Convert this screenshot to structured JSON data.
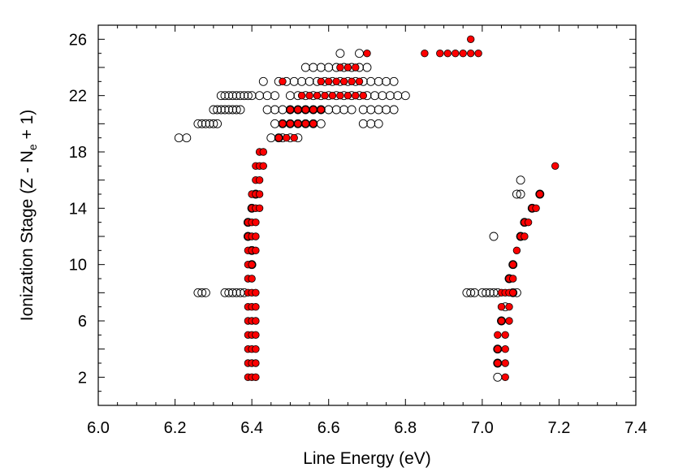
{
  "chart_data": {
    "type": "scatter",
    "xlabel": "Line Energy (eV)",
    "ylabel": {
      "prefix": "Ionization Stage (Z - N",
      "subscript": "e",
      "suffix": " + 1)"
    },
    "xlim": [
      6.0,
      7.4
    ],
    "ylim": [
      0,
      27
    ],
    "x_ticks": [
      "6.0",
      "6.2",
      "6.4",
      "6.6",
      "6.8",
      "7.0",
      "7.2",
      "7.4"
    ],
    "y_ticks": [
      "2",
      "6",
      "10",
      "14",
      "18",
      "22",
      "26"
    ],
    "grid": false,
    "legend": "none",
    "colors": {
      "filled": "#ff0000",
      "outline": "#000000"
    },
    "series": [
      {
        "marker": "open-circle",
        "points": [
          [
            6.21,
            19
          ],
          [
            6.23,
            19
          ],
          [
            6.45,
            19
          ],
          [
            6.47,
            19
          ],
          [
            6.48,
            19
          ],
          [
            6.5,
            19
          ],
          [
            6.52,
            19
          ],
          [
            6.26,
            20
          ],
          [
            6.27,
            20
          ],
          [
            6.28,
            20
          ],
          [
            6.29,
            20
          ],
          [
            6.3,
            20
          ],
          [
            6.31,
            20
          ],
          [
            6.46,
            20
          ],
          [
            6.48,
            20
          ],
          [
            6.5,
            20
          ],
          [
            6.52,
            20
          ],
          [
            6.54,
            20
          ],
          [
            6.56,
            20
          ],
          [
            6.58,
            20
          ],
          [
            6.69,
            20
          ],
          [
            6.71,
            20
          ],
          [
            6.73,
            20
          ],
          [
            6.3,
            21
          ],
          [
            6.31,
            21
          ],
          [
            6.32,
            21
          ],
          [
            6.33,
            21
          ],
          [
            6.34,
            21
          ],
          [
            6.35,
            21
          ],
          [
            6.36,
            21
          ],
          [
            6.37,
            21
          ],
          [
            6.44,
            21
          ],
          [
            6.46,
            21
          ],
          [
            6.48,
            21
          ],
          [
            6.5,
            21
          ],
          [
            6.52,
            21
          ],
          [
            6.54,
            21
          ],
          [
            6.56,
            21
          ],
          [
            6.58,
            21
          ],
          [
            6.6,
            21
          ],
          [
            6.62,
            21
          ],
          [
            6.64,
            21
          ],
          [
            6.66,
            21
          ],
          [
            6.69,
            21
          ],
          [
            6.71,
            21
          ],
          [
            6.73,
            21
          ],
          [
            6.75,
            21
          ],
          [
            6.77,
            21
          ],
          [
            6.32,
            22
          ],
          [
            6.33,
            22
          ],
          [
            6.34,
            22
          ],
          [
            6.35,
            22
          ],
          [
            6.36,
            22
          ],
          [
            6.37,
            22
          ],
          [
            6.38,
            22
          ],
          [
            6.39,
            22
          ],
          [
            6.4,
            22
          ],
          [
            6.42,
            22
          ],
          [
            6.44,
            22
          ],
          [
            6.46,
            22
          ],
          [
            6.5,
            22
          ],
          [
            6.52,
            22
          ],
          [
            6.54,
            22
          ],
          [
            6.56,
            22
          ],
          [
            6.58,
            22
          ],
          [
            6.6,
            22
          ],
          [
            6.62,
            22
          ],
          [
            6.64,
            22
          ],
          [
            6.66,
            22
          ],
          [
            6.68,
            22
          ],
          [
            6.7,
            22
          ],
          [
            6.72,
            22
          ],
          [
            6.74,
            22
          ],
          [
            6.76,
            22
          ],
          [
            6.78,
            22
          ],
          [
            6.8,
            22
          ],
          [
            6.43,
            23
          ],
          [
            6.47,
            23
          ],
          [
            6.49,
            23
          ],
          [
            6.51,
            23
          ],
          [
            6.53,
            23
          ],
          [
            6.55,
            23
          ],
          [
            6.57,
            23
          ],
          [
            6.59,
            23
          ],
          [
            6.61,
            23
          ],
          [
            6.63,
            23
          ],
          [
            6.65,
            23
          ],
          [
            6.67,
            23
          ],
          [
            6.69,
            23
          ],
          [
            6.71,
            23
          ],
          [
            6.73,
            23
          ],
          [
            6.75,
            23
          ],
          [
            6.77,
            23
          ],
          [
            6.54,
            24
          ],
          [
            6.56,
            24
          ],
          [
            6.58,
            24
          ],
          [
            6.6,
            24
          ],
          [
            6.62,
            24
          ],
          [
            6.64,
            24
          ],
          [
            6.66,
            24
          ],
          [
            6.68,
            24
          ],
          [
            6.7,
            24
          ],
          [
            6.63,
            25
          ],
          [
            6.68,
            25
          ],
          [
            6.26,
            8
          ],
          [
            6.27,
            8
          ],
          [
            6.28,
            8
          ],
          [
            6.33,
            8
          ],
          [
            6.34,
            8
          ],
          [
            6.35,
            8
          ],
          [
            6.36,
            8
          ],
          [
            6.37,
            8
          ],
          [
            6.38,
            8
          ],
          [
            6.96,
            8
          ],
          [
            6.97,
            8
          ],
          [
            6.98,
            8
          ],
          [
            7.0,
            8
          ],
          [
            7.01,
            8
          ],
          [
            7.02,
            8
          ],
          [
            7.03,
            8
          ],
          [
            7.04,
            8
          ],
          [
            7.08,
            8
          ],
          [
            7.09,
            8
          ],
          [
            7.03,
            12
          ],
          [
            7.09,
            15
          ],
          [
            7.1,
            15
          ],
          [
            7.1,
            16
          ],
          [
            6.4,
            10
          ],
          [
            6.4,
            11
          ],
          [
            6.39,
            12
          ],
          [
            6.39,
            13
          ],
          [
            6.4,
            14
          ],
          [
            6.41,
            15
          ],
          [
            7.04,
            2
          ],
          [
            7.04,
            3
          ],
          [
            7.04,
            4
          ],
          [
            7.05,
            6
          ],
          [
            7.06,
            7
          ],
          [
            7.07,
            9
          ],
          [
            7.08,
            10
          ],
          [
            7.1,
            12
          ],
          [
            7.11,
            13
          ],
          [
            7.13,
            14
          ],
          [
            7.15,
            15
          ]
        ]
      },
      {
        "marker": "filled-circle",
        "points": [
          [
            6.39,
            2
          ],
          [
            6.4,
            2
          ],
          [
            6.41,
            2
          ],
          [
            6.39,
            3
          ],
          [
            6.4,
            3
          ],
          [
            6.41,
            3
          ],
          [
            6.39,
            4
          ],
          [
            6.4,
            4
          ],
          [
            6.41,
            4
          ],
          [
            6.39,
            5
          ],
          [
            6.4,
            5
          ],
          [
            6.41,
            5
          ],
          [
            6.39,
            6
          ],
          [
            6.4,
            6
          ],
          [
            6.41,
            6
          ],
          [
            6.39,
            7
          ],
          [
            6.4,
            7
          ],
          [
            6.41,
            7
          ],
          [
            6.39,
            8
          ],
          [
            6.4,
            8
          ],
          [
            6.41,
            8
          ],
          [
            6.39,
            9
          ],
          [
            6.4,
            9
          ],
          [
            6.39,
            10
          ],
          [
            6.4,
            10
          ],
          [
            6.39,
            11
          ],
          [
            6.4,
            11
          ],
          [
            6.41,
            11
          ],
          [
            6.39,
            12
          ],
          [
            6.4,
            12
          ],
          [
            6.41,
            12
          ],
          [
            6.39,
            13
          ],
          [
            6.4,
            13
          ],
          [
            6.41,
            13
          ],
          [
            6.4,
            14
          ],
          [
            6.41,
            14
          ],
          [
            6.42,
            14
          ],
          [
            6.4,
            15
          ],
          [
            6.41,
            15
          ],
          [
            6.42,
            15
          ],
          [
            6.41,
            16
          ],
          [
            6.42,
            16
          ],
          [
            6.41,
            17
          ],
          [
            6.42,
            17
          ],
          [
            6.43,
            17
          ],
          [
            6.42,
            18
          ],
          [
            6.43,
            18
          ],
          [
            6.47,
            19
          ],
          [
            6.49,
            19
          ],
          [
            6.51,
            19
          ],
          [
            6.48,
            20
          ],
          [
            6.5,
            20
          ],
          [
            6.52,
            20
          ],
          [
            6.54,
            20
          ],
          [
            6.56,
            20
          ],
          [
            6.5,
            21
          ],
          [
            6.52,
            21
          ],
          [
            6.54,
            21
          ],
          [
            6.56,
            21
          ],
          [
            6.58,
            21
          ],
          [
            6.53,
            22
          ],
          [
            6.55,
            22
          ],
          [
            6.57,
            22
          ],
          [
            6.59,
            22
          ],
          [
            6.61,
            22
          ],
          [
            6.63,
            22
          ],
          [
            6.65,
            22
          ],
          [
            6.67,
            22
          ],
          [
            6.69,
            22
          ],
          [
            6.48,
            23
          ],
          [
            6.58,
            23
          ],
          [
            6.6,
            23
          ],
          [
            6.62,
            23
          ],
          [
            6.64,
            23
          ],
          [
            6.66,
            23
          ],
          [
            6.68,
            23
          ],
          [
            6.63,
            24
          ],
          [
            6.65,
            24
          ],
          [
            6.67,
            24
          ],
          [
            6.7,
            25
          ],
          [
            6.85,
            25
          ],
          [
            6.89,
            25
          ],
          [
            6.91,
            25
          ],
          [
            6.93,
            25
          ],
          [
            6.95,
            25
          ],
          [
            6.97,
            25
          ],
          [
            6.99,
            25
          ],
          [
            6.97,
            26
          ],
          [
            7.06,
            2
          ],
          [
            7.04,
            3
          ],
          [
            7.06,
            3
          ],
          [
            7.04,
            4
          ],
          [
            7.06,
            4
          ],
          [
            7.04,
            5
          ],
          [
            7.06,
            5
          ],
          [
            7.05,
            6
          ],
          [
            7.07,
            6
          ],
          [
            7.05,
            7
          ],
          [
            7.07,
            7
          ],
          [
            7.05,
            8
          ],
          [
            7.06,
            8
          ],
          [
            7.07,
            8
          ],
          [
            7.08,
            8
          ],
          [
            7.07,
            9
          ],
          [
            7.08,
            9
          ],
          [
            7.08,
            10
          ],
          [
            7.09,
            11
          ],
          [
            7.1,
            12
          ],
          [
            7.11,
            12
          ],
          [
            7.11,
            13
          ],
          [
            7.12,
            13
          ],
          [
            7.13,
            14
          ],
          [
            7.14,
            14
          ],
          [
            7.15,
            15
          ],
          [
            7.19,
            17
          ]
        ]
      }
    ]
  }
}
